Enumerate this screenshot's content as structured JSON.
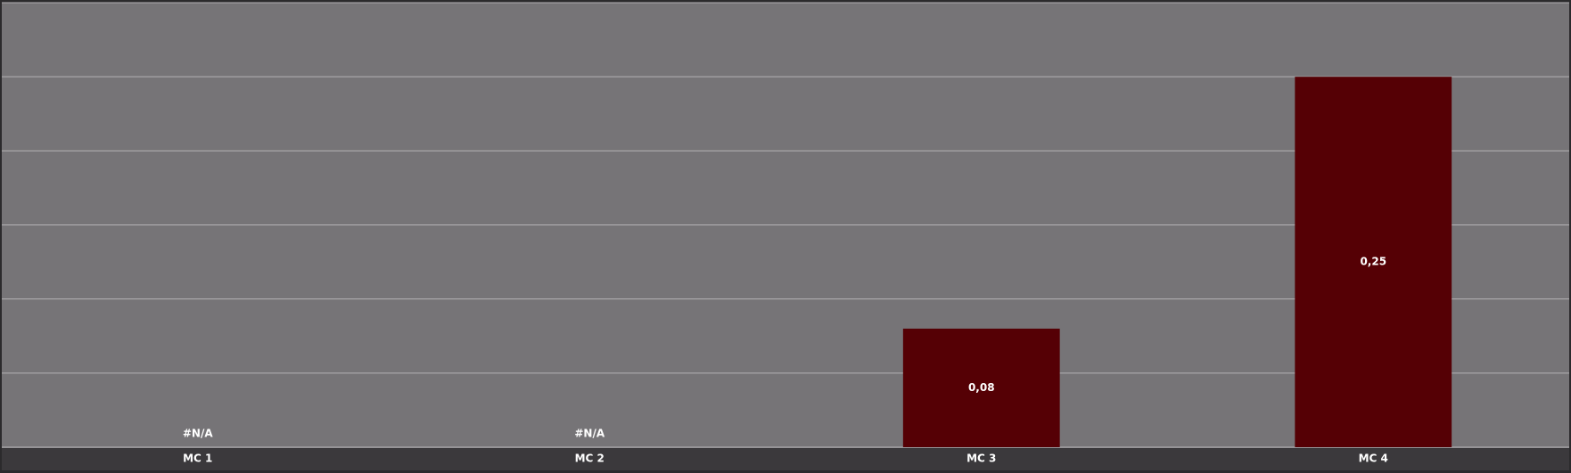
{
  "chart_data": {
    "type": "bar",
    "categories": [
      "MC 1",
      "MC 2",
      "MC 3",
      "MC 4"
    ],
    "values": [
      null,
      null,
      0.08,
      0.25
    ],
    "value_labels": [
      "#N/A",
      "#N/A",
      "0,08",
      "0,25"
    ],
    "color": "#550005",
    "ylim": [
      0,
      0.3
    ],
    "yticks": [
      0,
      0.05,
      0.1,
      0.15,
      0.2,
      0.25,
      0.3
    ],
    "grid": true
  }
}
